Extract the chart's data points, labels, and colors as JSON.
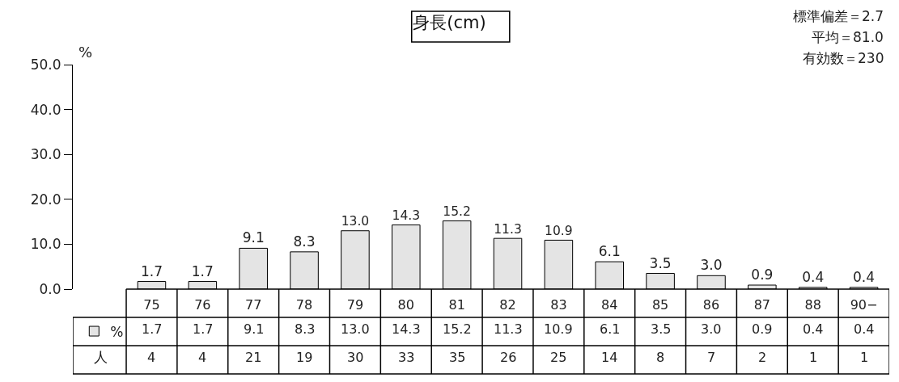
{
  "chart_data": {
    "type": "bar",
    "title": "身長(cm)",
    "ylabel": "%",
    "categories": [
      "75",
      "76",
      "77",
      "78",
      "79",
      "80",
      "81",
      "82",
      "83",
      "84",
      "85",
      "86",
      "87",
      "88",
      "90−"
    ],
    "series": [
      {
        "name": "%",
        "color": "#e4e4e4",
        "values": [
          1.7,
          1.7,
          9.1,
          8.3,
          13.0,
          14.3,
          15.2,
          11.3,
          10.9,
          6.1,
          3.5,
          3.0,
          0.9,
          0.4,
          0.4
        ],
        "value_labels": [
          "1.7",
          "1.7",
          "9.1",
          "8.3",
          "13.0",
          "14.3",
          "15.2",
          "11.3",
          "10.9",
          "6.1",
          "3.5",
          "3.0",
          "0.9",
          "0.4",
          "0.4"
        ]
      }
    ],
    "ylim": [
      0,
      50
    ],
    "yticks": [
      {
        "value": 0,
        "label": "0.0"
      },
      {
        "value": 10,
        "label": "10.0"
      },
      {
        "value": 20,
        "label": "20.0"
      },
      {
        "value": 30,
        "label": "30.0"
      },
      {
        "value": 40,
        "label": "40.0"
      },
      {
        "value": 50,
        "label": "50.0"
      }
    ],
    "legend": "bottom left",
    "annotations": [
      "標準偏差＝2.7",
      "平均＝81.0",
      "有効数＝230",
      "人",
      "4",
      "4",
      "21",
      "19",
      "30",
      "33",
      "35",
      "26",
      "25",
      "14",
      "8",
      "7",
      "2",
      "1",
      "1"
    ]
  }
}
